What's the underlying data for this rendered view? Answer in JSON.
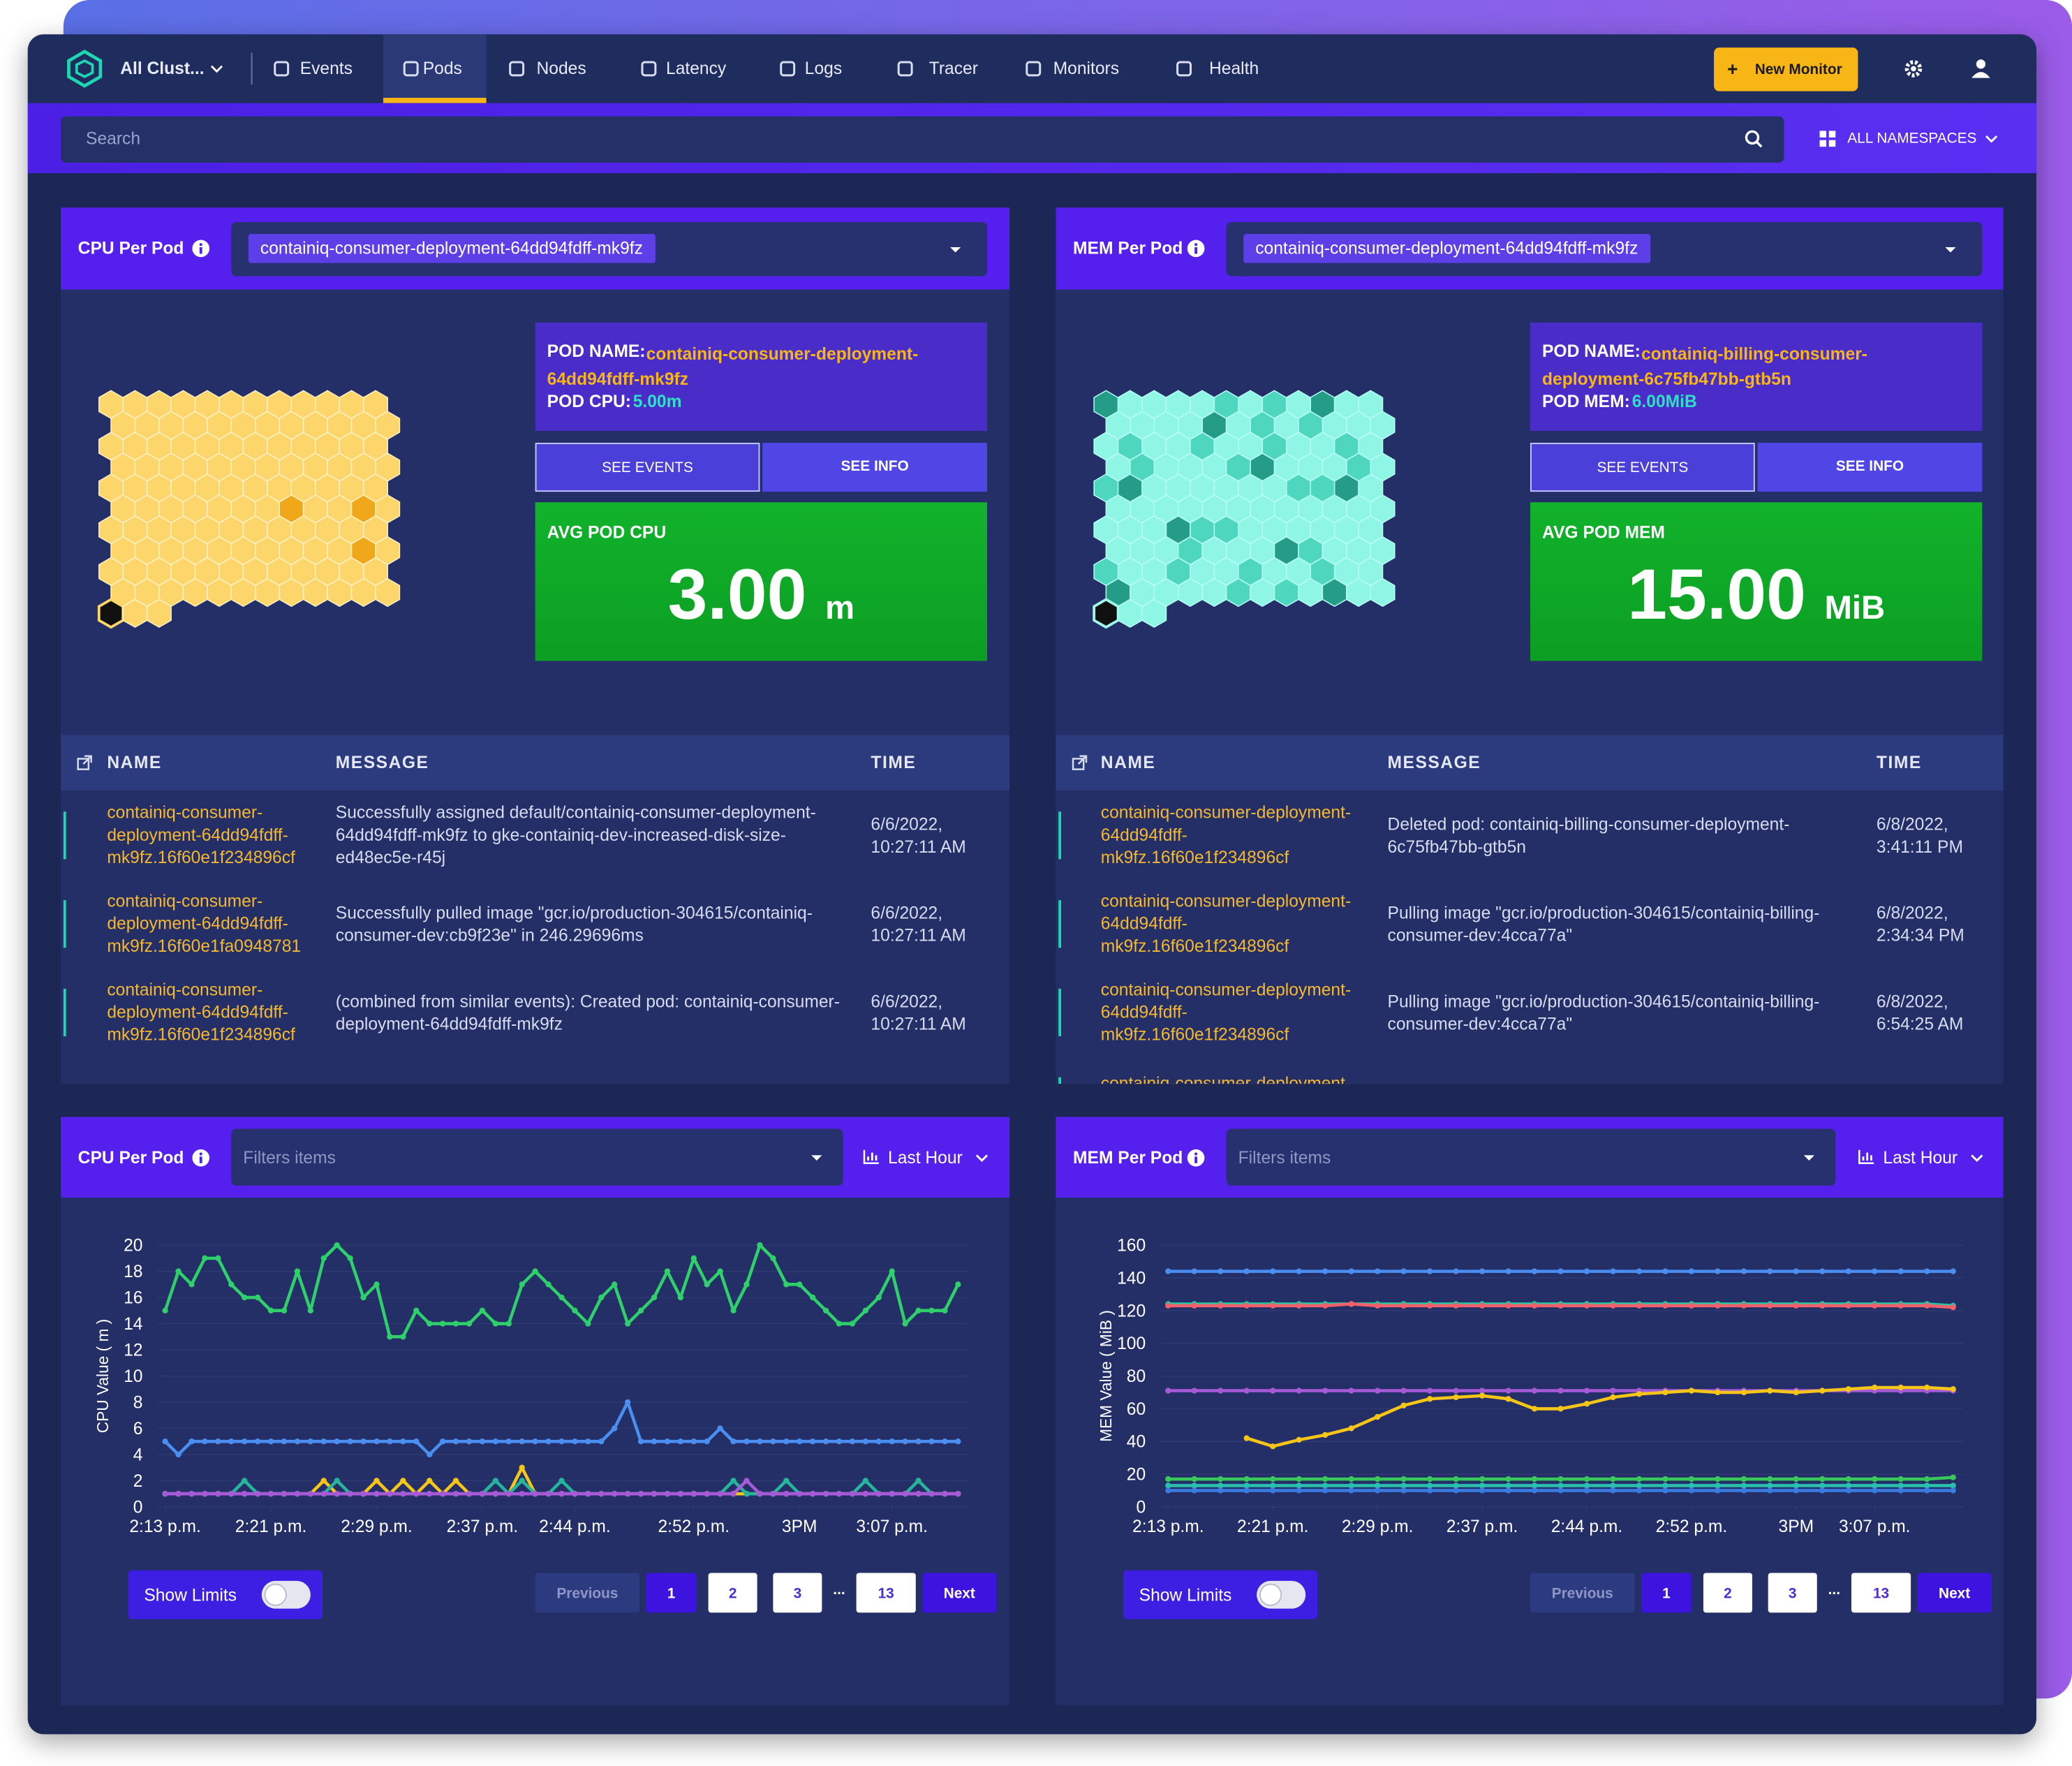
{
  "nav": {
    "cluster": "All Clust...",
    "items": [
      "Events",
      "Pods",
      "Nodes",
      "Latency",
      "Logs",
      "Tracer",
      "Monitors",
      "Health"
    ],
    "new_monitor": "New Monitor"
  },
  "search": {
    "placeholder": "Search",
    "namespaces": "ALL NAMESPACES"
  },
  "pod_panels": [
    {
      "title": "CPU Per Pod",
      "selected": "containiq-consumer-deployment-64dd94fdff-mk9fz",
      "pod_name_label": "POD NAME:",
      "pod_name": "containiq-consumer-deployment-64dd94fdff-mk9fz",
      "metric_label": "POD CPU:",
      "metric_value": "5.00m",
      "see_events": "SEE EVENTS",
      "see_info": "SEE INFO",
      "avg_label": "AVG POD CPU",
      "avg_value": "3.00",
      "avg_unit": "m",
      "table": {
        "headers": [
          "NAME",
          "MESSAGE",
          "TIME"
        ],
        "rows": [
          {
            "name": "containiq-consumer-deployment-64dd94fdff-mk9fz.16f60e1f234896cf",
            "message": "Successfully assigned default/containiq-consumer-deployment-64dd94fdff-mk9fz to gke-containiq-dev-increased-disk-size-ed48ec5e-r45j",
            "time": "6/6/2022, 10:27:11 AM"
          },
          {
            "name": "containiq-consumer-deployment-64dd94fdff-mk9fz.16f60e1fa0948781",
            "message": "Successfully pulled image \"gcr.io/production-304615/containiq-consumer-dev:cb9f23e\" in 246.29696ms",
            "time": "6/6/2022, 10:27:11 AM"
          },
          {
            "name": "containiq-consumer-deployment-64dd94fdff-mk9fz.16f60e1f234896cf",
            "message": "(combined from similar events): Created pod: containiq-consumer-deployment-64dd94fdff-mk9fz",
            "time": "6/6/2022, 10:27:11 AM"
          }
        ]
      }
    },
    {
      "title": "MEM Per Pod",
      "selected": "containiq-consumer-deployment-64dd94fdff-mk9fz",
      "pod_name_label": "POD NAME:",
      "pod_name": "containiq-billing-consumer-deployment-6c75fb47bb-gtb5n",
      "metric_label": "POD MEM:",
      "metric_value": "6.00MiB",
      "see_events": "SEE EVENTS",
      "see_info": "SEE INFO",
      "avg_label": "AVG POD MEM",
      "avg_value": "15.00",
      "avg_unit": "MiB",
      "table": {
        "headers": [
          "NAME",
          "MESSAGE",
          "TIME"
        ],
        "rows": [
          {
            "name": "containiq-consumer-deployment-64dd94fdff-mk9fz.16f60e1f234896cf",
            "message": "Deleted pod: containiq-billing-consumer-deployment-6c75fb47bb-gtb5n",
            "time": "6/8/2022, 3:41:11 PM"
          },
          {
            "name": "containiq-consumer-deployment-64dd94fdff-mk9fz.16f60e1f234896cf",
            "message": "Pulling image \"gcr.io/production-304615/containiq-billing-consumer-dev:4cca77a\"",
            "time": "6/8/2022, 2:34:34 PM"
          },
          {
            "name": "containiq-consumer-deployment-64dd94fdff-mk9fz.16f60e1f234896cf",
            "message": "Pulling image \"gcr.io/production-304615/containiq-billing-consumer-dev:4cca77a\"",
            "time": "6/8/2022, 6:54:25 AM"
          },
          {
            "name": "containiq-consumer-deployment-"
          }
        ]
      }
    }
  ],
  "chart_panels": [
    {
      "filter": "Filters items",
      "range": "Last Hour",
      "show_limits": "Show Limits",
      "pages": [
        "Previous",
        "1",
        "2",
        "3",
        "...",
        "13",
        "Next"
      ]
    },
    {
      "filter": "Filters items",
      "range": "Last Hour",
      "show_limits": "Show Limits",
      "pages": [
        "Previous",
        "1",
        "2",
        "3",
        "...",
        "13",
        "Next"
      ]
    }
  ],
  "chart_data": [
    {
      "type": "line",
      "title": "CPU Per Pod",
      "y_label": "CPU Value ( m )",
      "grid": true,
      "xlim": [
        0,
        60
      ],
      "xticks": [
        {
          "value": 0,
          "label": "2:13 p.m."
        },
        {
          "value": 8,
          "label": "2:21 p.m."
        },
        {
          "value": 16,
          "label": "2:29 p.m."
        },
        {
          "value": 24,
          "label": "2:37 p.m."
        },
        {
          "value": 31,
          "label": "2:44 p.m."
        },
        {
          "value": 40,
          "label": "2:52 p.m."
        },
        {
          "value": 48,
          "label": "3PM"
        },
        {
          "value": 55,
          "label": "3:07 p.m."
        }
      ],
      "ylim": [
        0,
        20
      ],
      "yticks": [
        0,
        2,
        4,
        6,
        8,
        10,
        12,
        14,
        16,
        18,
        20
      ],
      "series": [
        {
          "color": "#2fcf6b",
          "values": [
            15,
            18,
            17,
            19,
            19,
            17,
            16,
            16,
            15,
            15,
            18,
            15,
            19,
            20,
            19,
            16,
            17,
            13,
            13,
            15,
            14,
            14,
            14,
            14,
            15,
            14,
            14,
            17,
            18,
            17,
            16,
            15,
            14,
            16,
            17,
            14,
            15,
            16,
            18,
            16,
            19,
            17,
            18,
            15,
            17,
            20,
            19,
            17,
            17,
            16,
            15,
            14,
            14,
            15,
            16,
            18,
            14,
            15,
            15,
            15,
            17
          ]
        },
        {
          "color": "#4a8ff0",
          "values": [
            5,
            4,
            5,
            5,
            5,
            5,
            5,
            5,
            5,
            5,
            5,
            5,
            5,
            5,
            5,
            5,
            5,
            5,
            5,
            5,
            4,
            5,
            5,
            5,
            5,
            5,
            5,
            5,
            5,
            5,
            5,
            5,
            5,
            5,
            6,
            8,
            5,
            5,
            5,
            5,
            5,
            5,
            6,
            5,
            5,
            5,
            5,
            5,
            5,
            5,
            5,
            5,
            5,
            5,
            5,
            5,
            5,
            5,
            5,
            5,
            5
          ]
        },
        {
          "color": "#f5c518",
          "values": [
            1,
            1,
            1,
            1,
            1,
            1,
            1,
            1,
            1,
            1,
            1,
            1,
            2,
            1,
            1,
            1,
            2,
            1,
            2,
            1,
            2,
            1,
            2,
            1,
            1,
            1,
            1,
            3,
            1,
            1,
            1,
            1,
            1,
            1,
            1,
            1,
            1,
            1,
            1,
            1,
            1,
            1,
            1,
            1,
            1,
            1,
            1,
            1,
            1,
            1,
            1,
            1,
            1,
            1,
            1,
            1,
            1,
            1,
            1,
            1,
            1
          ]
        },
        {
          "color": "#26b59c",
          "values": [
            1,
            1,
            1,
            1,
            1,
            1,
            2,
            1,
            1,
            1,
            1,
            1,
            1,
            2,
            1,
            1,
            1,
            1,
            1,
            1,
            1,
            1,
            1,
            1,
            1,
            2,
            1,
            2,
            1,
            1,
            2,
            1,
            1,
            1,
            1,
            1,
            1,
            1,
            1,
            1,
            1,
            1,
            1,
            2,
            1,
            1,
            1,
            2,
            1,
            1,
            1,
            1,
            1,
            2,
            1,
            1,
            1,
            2,
            1,
            1,
            1
          ]
        },
        {
          "color": "#a65ad8",
          "values": [
            1,
            1,
            1,
            1,
            1,
            1,
            1,
            1,
            1,
            1,
            1,
            1,
            1,
            1,
            1,
            1,
            1,
            1,
            1,
            1,
            1,
            1,
            1,
            1,
            1,
            1,
            1,
            1,
            1,
            1,
            1,
            1,
            1,
            1,
            1,
            1,
            1,
            1,
            1,
            1,
            1,
            1,
            1,
            1,
            2,
            1,
            1,
            1,
            1,
            1,
            1,
            1,
            1,
            1,
            1,
            1,
            1,
            1,
            1,
            1,
            1
          ]
        }
      ]
    },
    {
      "type": "line",
      "title": "MEM Per Pod",
      "y_label": "MEM Value ( MiB )",
      "grid": true,
      "xlim": [
        0,
        30
      ],
      "xticks": [
        {
          "value": 0,
          "label": "2:13 p.m."
        },
        {
          "value": 4,
          "label": "2:21 p.m."
        },
        {
          "value": 8,
          "label": "2:29 p.m."
        },
        {
          "value": 12,
          "label": "2:37 p.m."
        },
        {
          "value": 16,
          "label": "2:44 p.m."
        },
        {
          "value": 20,
          "label": "2:52 p.m."
        },
        {
          "value": 24,
          "label": "3PM"
        },
        {
          "value": 27,
          "label": "3:07 p.m."
        }
      ],
      "ylim": [
        0,
        160
      ],
      "yticks": [
        0,
        20,
        40,
        60,
        80,
        100,
        120,
        140,
        160
      ],
      "series": [
        {
          "color": "#4a8ff0",
          "values": [
            144,
            144,
            144,
            144,
            144,
            144,
            144,
            144,
            144,
            144,
            144,
            144,
            144,
            144,
            144,
            144,
            144,
            144,
            144,
            144,
            144,
            144,
            144,
            144,
            144,
            144,
            144,
            144,
            144,
            144,
            144
          ]
        },
        {
          "color": "#26c4a4",
          "values": [
            124,
            124,
            124,
            124,
            124,
            124,
            124,
            124,
            124,
            124,
            124,
            124,
            124,
            124,
            124,
            124,
            124,
            124,
            124,
            124,
            124,
            124,
            124,
            124,
            124,
            124,
            124,
            124,
            124,
            124,
            123
          ]
        },
        {
          "color": "#f0606a",
          "values": [
            123,
            123,
            123,
            123,
            123,
            123,
            123,
            124,
            123,
            123,
            123,
            123,
            123,
            123,
            123,
            123,
            123,
            123,
            123,
            123,
            123,
            123,
            123,
            123,
            123,
            123,
            123,
            123,
            123,
            123,
            122
          ]
        },
        {
          "color": "#a65ad8",
          "values": [
            71,
            71,
            71,
            71,
            71,
            71,
            71,
            71,
            71,
            71,
            71,
            71,
            71,
            71,
            71,
            71,
            71,
            71,
            71,
            71,
            71,
            71,
            71,
            71,
            71,
            71,
            71,
            71,
            71,
            71,
            71
          ]
        },
        {
          "color": "#f5c518",
          "values": [
            null,
            null,
            null,
            42,
            37,
            41,
            44,
            48,
            55,
            62,
            66,
            67,
            68,
            66,
            60,
            60,
            63,
            67,
            69,
            70,
            71,
            70,
            70,
            71,
            70,
            71,
            72,
            73,
            73,
            73,
            72
          ]
        },
        {
          "color": "#38c95a",
          "values": [
            17,
            17,
            17,
            17,
            17,
            17,
            17,
            17,
            17,
            17,
            17,
            17,
            17,
            17,
            17,
            17,
            17,
            17,
            17,
            17,
            17,
            17,
            17,
            17,
            17,
            17,
            17,
            17,
            17,
            17,
            18
          ]
        },
        {
          "color": "#2bbfb0",
          "values": [
            13,
            13,
            13,
            13,
            13,
            13,
            13,
            13,
            13,
            13,
            13,
            13,
            13,
            13,
            13,
            13,
            13,
            13,
            13,
            13,
            13,
            13,
            13,
            13,
            13,
            13,
            13,
            13,
            13,
            13,
            13
          ]
        },
        {
          "color": "#3a7be0",
          "values": [
            10,
            10,
            10,
            10,
            10,
            10,
            10,
            10,
            10,
            10,
            10,
            10,
            10,
            10,
            10,
            10,
            10,
            10,
            10,
            10,
            10,
            10,
            10,
            10,
            10,
            10,
            10,
            10,
            10,
            10,
            10
          ]
        }
      ]
    }
  ]
}
